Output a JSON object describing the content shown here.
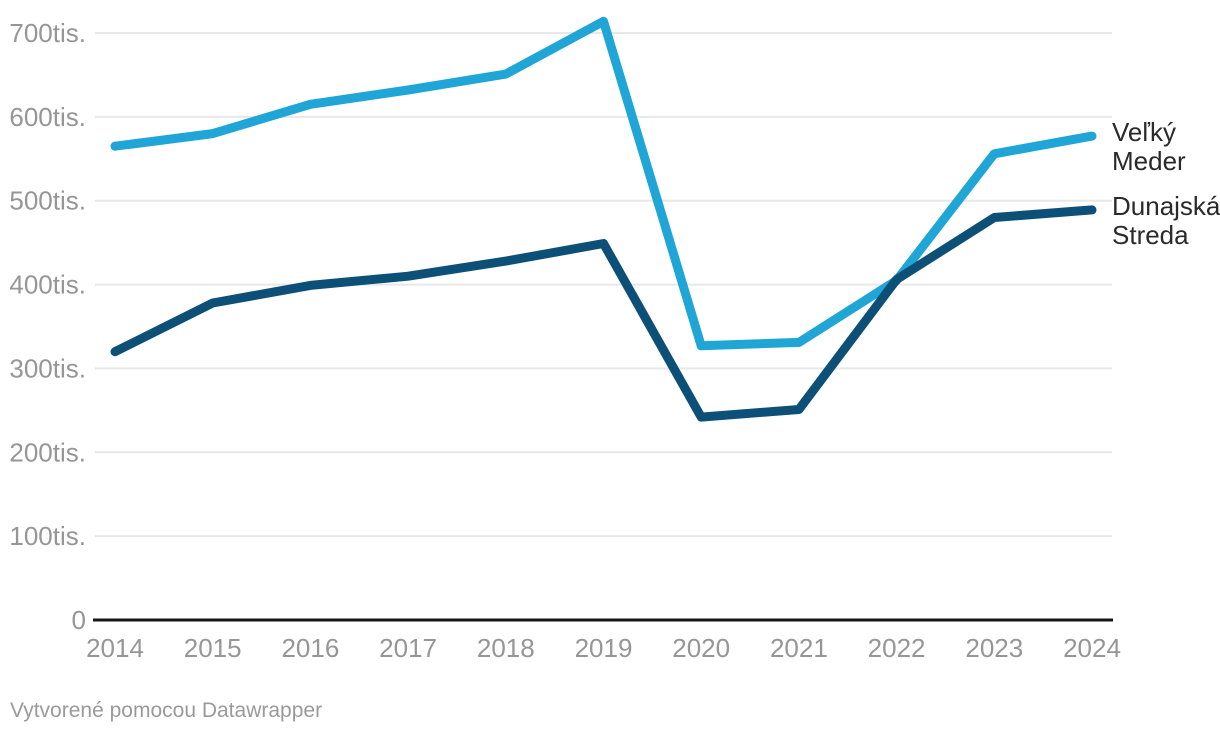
{
  "chart_data": {
    "type": "line",
    "x": [
      2014,
      2015,
      2016,
      2017,
      2018,
      2019,
      2020,
      2021,
      2022,
      2023,
      2024
    ],
    "x_tick_labels": [
      "2014",
      "2015",
      "2016",
      "2017",
      "2018",
      "2019",
      "2020",
      "2021",
      "2022",
      "2023",
      "2024"
    ],
    "series": [
      {
        "name": "Veľký Meder",
        "color": "#1fa5d6",
        "values": [
          565000,
          580000,
          615000,
          632000,
          651000,
          714000,
          327000,
          331000,
          405000,
          556000,
          577000
        ]
      },
      {
        "name": "Dunajská Streda",
        "color": "#0d5077",
        "values": [
          320000,
          378000,
          399000,
          410000,
          428000,
          449000,
          242000,
          251000,
          406000,
          480000,
          489000
        ]
      }
    ],
    "y_ticks": [
      {
        "value": 0,
        "label": "0"
      },
      {
        "value": 100000,
        "label": "100tis."
      },
      {
        "value": 200000,
        "label": "200tis."
      },
      {
        "value": 300000,
        "label": "300tis."
      },
      {
        "value": 400000,
        "label": "400tis."
      },
      {
        "value": 500000,
        "label": "500tis."
      },
      {
        "value": 600000,
        "label": "600tis."
      },
      {
        "value": 700000,
        "label": "700tis."
      }
    ],
    "ylim": [
      0,
      700000
    ],
    "unit_suffix": "tis.",
    "grid": "horizontal",
    "legend_position": "right-of-line-ends",
    "title": "",
    "xlabel": "",
    "ylabel": ""
  },
  "colors": {
    "gridline": "#e8e8e8",
    "baseline": "#161616",
    "tick_text": "#969696",
    "legend_text": "#2a2a2a",
    "footer_text": "#9a9a9a",
    "background": "#ffffff"
  },
  "footer": {
    "attribution": "Vytvorené pomocou Datawrapper"
  }
}
